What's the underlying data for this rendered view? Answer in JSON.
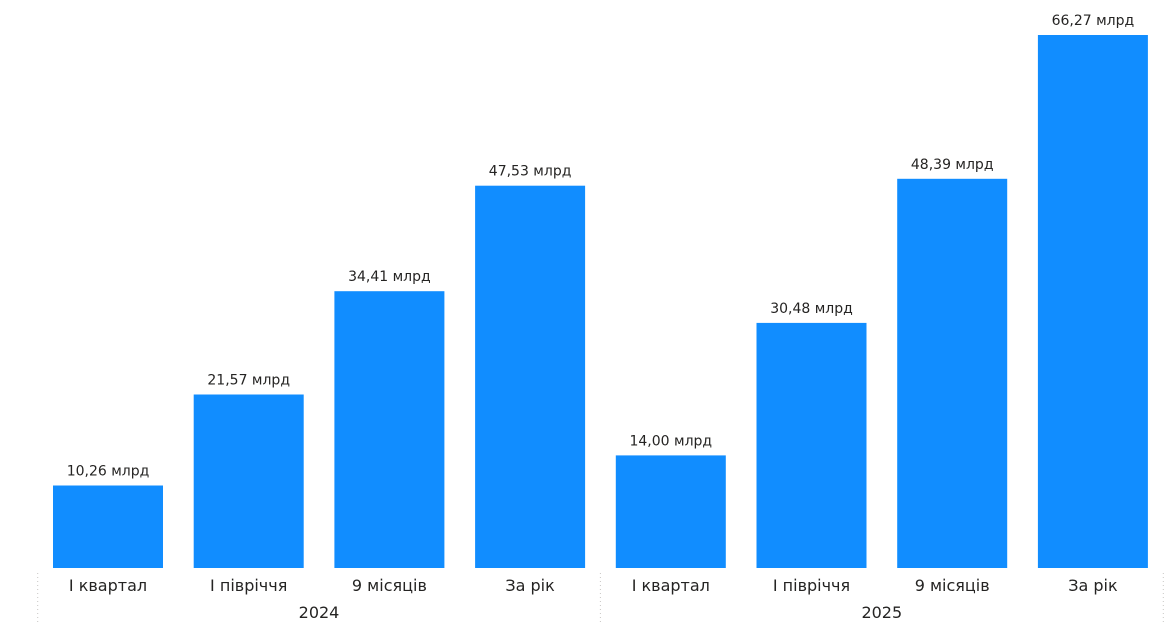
{
  "chart_data": {
    "type": "bar",
    "title": "",
    "xlabel": "",
    "ylabel": "",
    "ylim": [
      0,
      66.27
    ],
    "grid": false,
    "legend": "none",
    "bar_color": "#118DFF",
    "groups": [
      {
        "label": "2024",
        "categories": [
          "І квартал",
          "І півріччя",
          "9 місяців",
          "За рік"
        ],
        "values": [
          10.26,
          21.57,
          34.41,
          47.53
        ],
        "value_labels": [
          "10,26 млрд",
          "21,57 млрд",
          "34,41 млрд",
          "47,53 млрд"
        ]
      },
      {
        "label": "2025",
        "categories": [
          "І квартал",
          "І півріччя",
          "9 місяців",
          "За рік"
        ],
        "values": [
          14.0,
          30.48,
          48.39,
          66.27
        ],
        "value_labels": [
          "14,00 млрд",
          "30,48 млрд",
          "48,39 млрд",
          "66,27 млрд"
        ]
      }
    ]
  }
}
